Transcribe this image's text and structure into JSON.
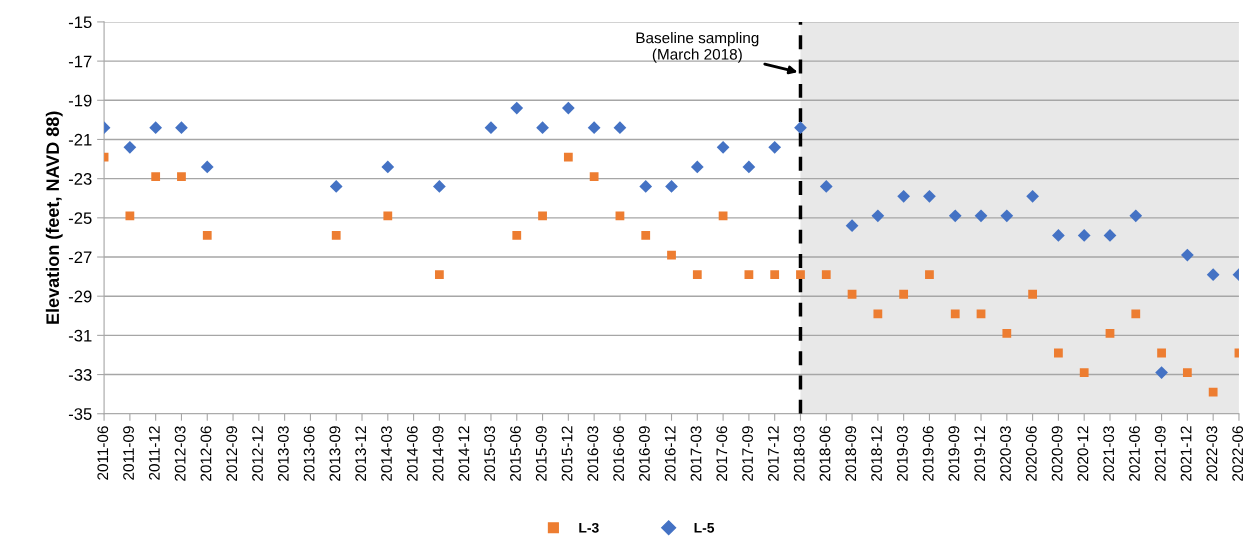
{
  "chart_data": {
    "type": "scatter",
    "ylabel": "Elevation (feet, NAVD 88)",
    "categories": [
      "2011-06",
      "2011-09",
      "2011-12",
      "2012-03",
      "2012-06",
      "2012-09",
      "2012-12",
      "2013-03",
      "2013-06",
      "2013-09",
      "2013-12",
      "2014-03",
      "2014-06",
      "2014-09",
      "2014-12",
      "2015-03",
      "2015-06",
      "2015-09",
      "2015-12",
      "2016-03",
      "2016-06",
      "2016-09",
      "2016-12",
      "2017-03",
      "2017-06",
      "2017-09",
      "2017-12",
      "2018-03",
      "2018-06",
      "2018-09",
      "2018-12",
      "2019-03",
      "2019-06",
      "2019-09",
      "2019-12",
      "2020-03",
      "2020-06",
      "2020-09",
      "2020-12",
      "2021-03",
      "2021-06",
      "2021-09",
      "2021-12",
      "2022-03",
      "2022-06"
    ],
    "series": [
      {
        "name": "L-3",
        "color": "#ed7d31",
        "marker": "square",
        "values": [
          -21.9,
          -24.9,
          -22.9,
          -22.9,
          -25.9,
          null,
          null,
          null,
          null,
          -25.9,
          null,
          -24.9,
          null,
          -27.9,
          null,
          null,
          -25.9,
          -24.9,
          -21.9,
          -22.9,
          -24.9,
          -25.9,
          -26.9,
          -27.9,
          -24.9,
          -27.9,
          -27.9,
          -27.9,
          -27.9,
          -28.9,
          -29.9,
          -28.9,
          -27.9,
          -29.9,
          -29.9,
          -30.9,
          -28.9,
          -31.9,
          -32.9,
          -30.9,
          -29.9,
          -31.9,
          -32.9,
          -33.9,
          -31.9
        ]
      },
      {
        "name": "L-5",
        "color": "#4472c4",
        "marker": "diamond",
        "values": [
          -20.4,
          -21.4,
          -20.4,
          -20.4,
          -22.4,
          null,
          null,
          null,
          null,
          -23.4,
          null,
          -22.4,
          null,
          -23.4,
          null,
          -20.4,
          -19.4,
          -20.4,
          -19.4,
          -20.4,
          -20.4,
          -23.4,
          -23.4,
          -22.4,
          -21.4,
          -22.4,
          -21.4,
          -20.4,
          -23.4,
          -25.4,
          -24.9,
          -23.9,
          -23.9,
          -24.9,
          -24.9,
          -24.9,
          -23.9,
          -25.9,
          -25.9,
          -25.9,
          -24.9,
          -32.9,
          -26.9,
          -27.9,
          -27.9
        ]
      }
    ],
    "ylim": [
      -35,
      -15
    ],
    "yticks": [
      -35,
      -33,
      -31,
      -29,
      -27,
      -25,
      -23,
      -21,
      -19,
      -17,
      -15
    ],
    "grid": "y",
    "legend": "bottom",
    "ref_lines": [
      {
        "axis": "x",
        "value": "2018-03",
        "color": "#000000",
        "line_style": "dashed"
      }
    ],
    "bands": [
      {
        "axis": "x",
        "from": "2018-03",
        "to": "2022-06",
        "color": "#e8e8e8"
      }
    ],
    "annotations": [
      {
        "text": "Baseline sampling\n(March 2018)",
        "x": "2018-03",
        "y": -17.6
      }
    ]
  }
}
